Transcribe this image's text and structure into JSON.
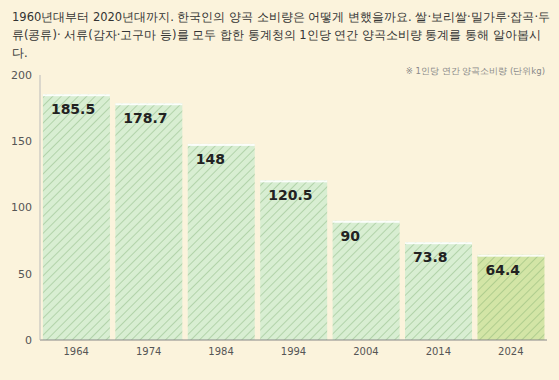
{
  "chart_data": {
    "type": "bar",
    "title": "1960년대부터 2020년대까지. 한국인의 양곡 소비량은 어떻게 변했을까요. 쌀·보리쌀·밀가루·잡곡·두류(콩류)· 서류(감자·고구마 등)를 모두 합한 통계청의 1인당 연간 양곡소비량 통계를 통해 알아봅시다.",
    "annotation": "※ 1인당 연간 양곡소비량 (단위kg)",
    "categories": [
      "1964",
      "1974",
      "1984",
      "1994",
      "2004",
      "2014",
      "2024"
    ],
    "values": [
      185.5,
      178.7,
      148,
      120.5,
      90,
      73.8,
      64.4
    ],
    "colors": [
      "#d8eed2",
      "#d8eed2",
      "#d8eed2",
      "#d8eed2",
      "#d8eed2",
      "#d8eed2",
      "#d3e5a6"
    ],
    "ylim": [
      0,
      200
    ],
    "yticks": [
      0,
      50,
      100,
      150,
      200
    ],
    "grid": false,
    "data_labels": true
  }
}
